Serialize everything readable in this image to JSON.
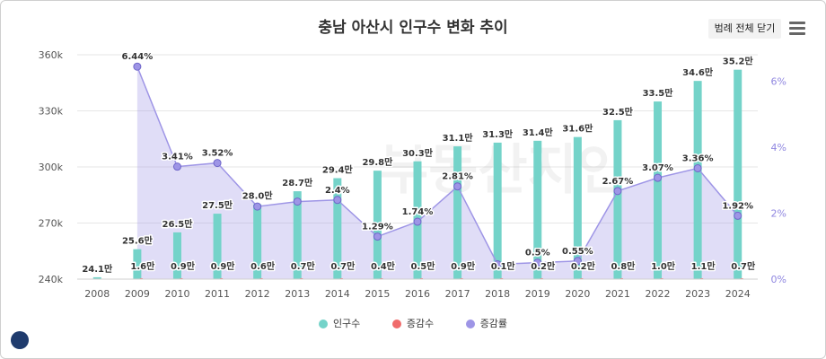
{
  "header": {
    "title": "충남 아산시 인구수 변화 추이",
    "legend_toggle_label": "범례 전체 닫기",
    "menu_icon": "hamburger-menu-icon"
  },
  "watermark": "부동산지인",
  "legend": [
    {
      "label": "인구수",
      "color": "#74d3c9"
    },
    {
      "label": "증감수",
      "color": "#f06b6b"
    },
    {
      "label": "증감률",
      "color": "#9e95e6"
    }
  ],
  "chart_data": {
    "type": "bar+line",
    "title": "충남 아산시 인구수 변화 추이",
    "categories": [
      "2008",
      "2009",
      "2010",
      "2011",
      "2012",
      "2013",
      "2014",
      "2015",
      "2016",
      "2017",
      "2018",
      "2019",
      "2020",
      "2021",
      "2022",
      "2023",
      "2024"
    ],
    "series": [
      {
        "name": "인구수",
        "type": "bar",
        "axis": "left",
        "color": "#74d3c9",
        "values": [
          241000,
          256000,
          265000,
          275000,
          280000,
          287000,
          294000,
          298000,
          303000,
          311000,
          313000,
          314000,
          316000,
          325000,
          335000,
          346000,
          352000
        ],
        "labels": [
          "24.1만",
          "25.6만",
          "26.5만",
          "27.5만",
          "28.0만",
          "28.7만",
          "29.4만",
          "29.8만",
          "30.3만",
          "31.1만",
          "31.3만",
          "31.4만",
          "31.6만",
          "32.5만",
          "33.5만",
          "34.6만",
          "35.2만"
        ]
      },
      {
        "name": "증감수",
        "type": "bar",
        "axis": "left",
        "color": "#f06b6b",
        "values": [
          null,
          16000,
          9000,
          9000,
          6000,
          7000,
          7000,
          4000,
          5000,
          9000,
          1000,
          2000,
          2000,
          8000,
          10000,
          11000,
          7000
        ],
        "labels": [
          "",
          "1.6만",
          "0.9만",
          "0.9만",
          "0.6만",
          "0.7만",
          "0.7만",
          "0.4만",
          "0.5만",
          "0.9만",
          "0.1만",
          "0.2만",
          "0.2만",
          "0.8만",
          "1.0만",
          "1.1만",
          "0.7만"
        ]
      },
      {
        "name": "증감률",
        "type": "area",
        "axis": "right",
        "color": "#9e95e6",
        "values": [
          null,
          6.44,
          3.41,
          3.52,
          2.2,
          2.35,
          2.4,
          1.29,
          1.74,
          2.81,
          0.45,
          0.5,
          0.55,
          2.67,
          3.07,
          3.36,
          1.92
        ],
        "labels": [
          "",
          "6.44%",
          "3.41%",
          "3.52%",
          "",
          "",
          "2.4%",
          "1.29%",
          "1.74%",
          "2.81%",
          "",
          "0.5%",
          "0.55%",
          "2.67%",
          "3.07%",
          "3.36%",
          "1.92%"
        ]
      }
    ],
    "y_left": {
      "min": 240000,
      "max": 360000,
      "ticks": [
        240000,
        270000,
        300000,
        330000,
        360000
      ],
      "tick_labels": [
        "240k",
        "270k",
        "300k",
        "330k",
        "360k"
      ]
    },
    "y_right": {
      "min": 0,
      "max": 6.8,
      "ticks": [
        0,
        2,
        4,
        6
      ],
      "tick_labels": [
        "0%",
        "2%",
        "4%",
        "6%"
      ]
    },
    "legend_position": "bottom-center"
  }
}
